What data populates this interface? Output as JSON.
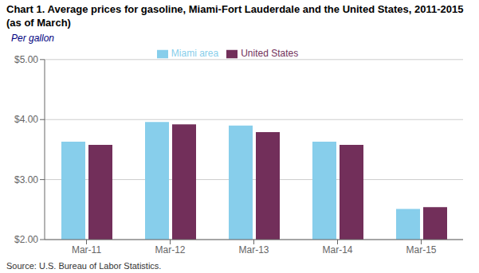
{
  "chart_data": {
    "type": "bar",
    "title": "Chart 1. Average prices for gasoline, Miami-Fort Lauderdale and the United States, 2011-2015 (as of March)",
    "y_label": "Per gallon",
    "source": "Source: U.S. Bureau of Labor Statistics.",
    "categories": [
      "Mar-11",
      "Mar-12",
      "Mar-13",
      "Mar-14",
      "Mar-15"
    ],
    "series": [
      {
        "name": "Miami area",
        "color": "#87CEEB",
        "values": [
          3.63,
          3.96,
          3.9,
          3.63,
          2.51
        ]
      },
      {
        "name": "United States",
        "color": "#722F5A",
        "values": [
          3.58,
          3.92,
          3.79,
          3.58,
          2.54
        ]
      }
    ],
    "ylim": [
      2.0,
      5.0
    ],
    "yticks": [
      {
        "value": 2.0,
        "label": "$2.00"
      },
      {
        "value": 3.0,
        "label": "$3.00"
      },
      {
        "value": 4.0,
        "label": "$4.00"
      },
      {
        "value": 5.0,
        "label": "$5.00"
      }
    ],
    "grid": true,
    "legend": "top"
  }
}
